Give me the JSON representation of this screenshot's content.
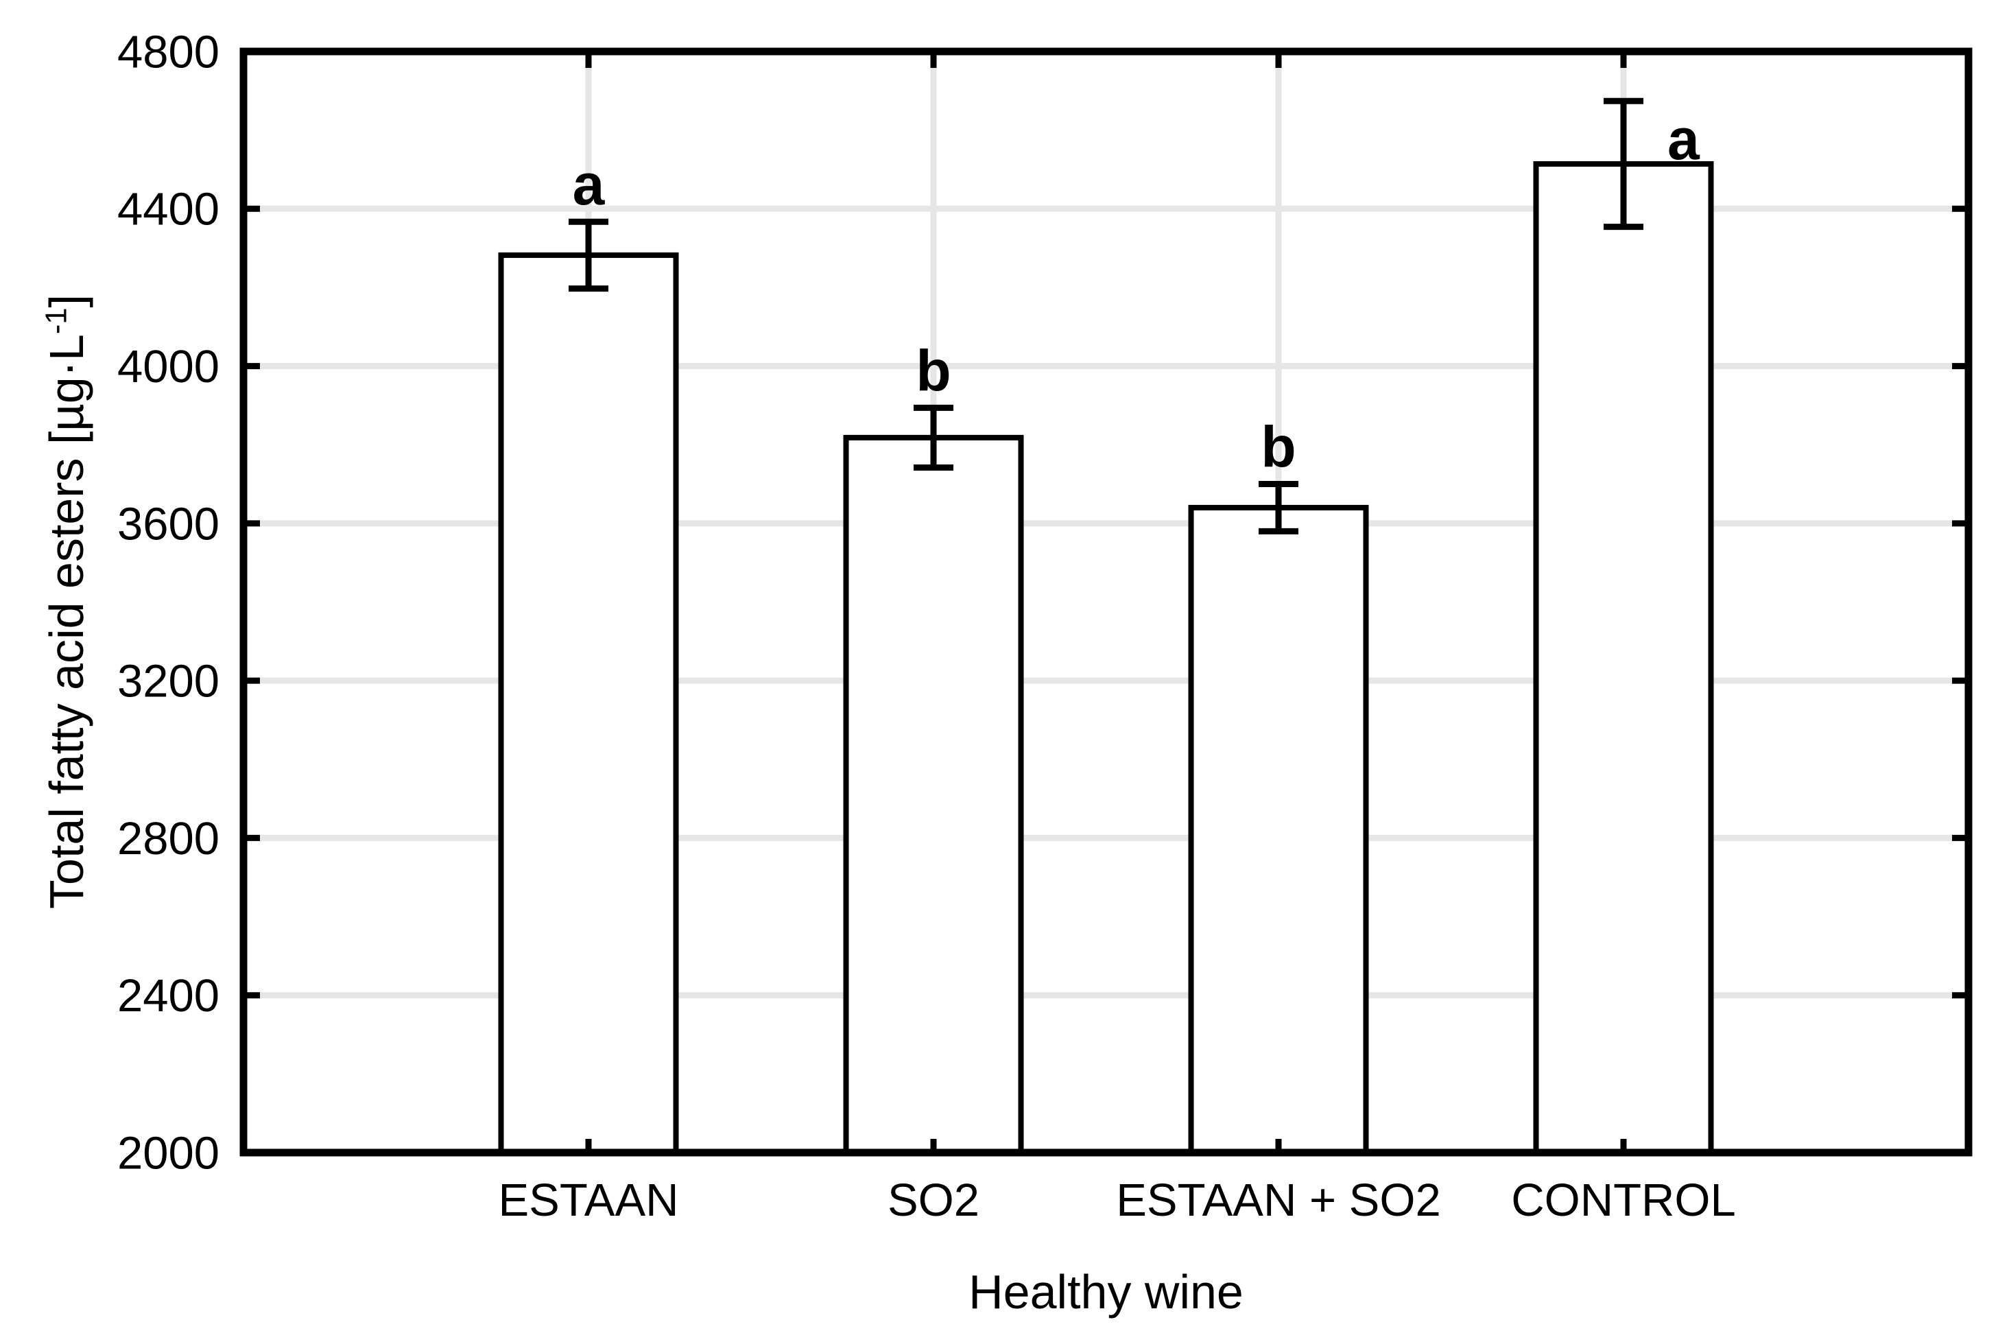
{
  "chart_data": {
    "type": "bar",
    "xlabel": "Healthy wine",
    "ylabel": {
      "prefix": "Total fatty acid esters [µg·L",
      "superscript": "-1",
      "suffix": "]"
    },
    "categories": [
      "ESTAAN",
      "SO2",
      "ESTAAN + SO2",
      "CONTROL"
    ],
    "series": [
      {
        "name": "Total fatty acid esters",
        "values": [
          4282,
          3818,
          3640,
          4514
        ],
        "errors": [
          85,
          76,
          60,
          160
        ]
      }
    ],
    "significance_letters": [
      "a",
      "b",
      "b",
      "a"
    ],
    "letter_placement": [
      "above",
      "above",
      "above",
      "right"
    ],
    "ylim": [
      2000,
      4800
    ],
    "yticks": [
      2000,
      2400,
      2800,
      3200,
      3600,
      4000,
      4400,
      4800
    ],
    "grid": true,
    "legend": "none",
    "colors": {
      "bar_fill": "#ffffff",
      "stroke": "#000000",
      "gridline": "#e6e6e6",
      "background": "#ffffff"
    }
  }
}
